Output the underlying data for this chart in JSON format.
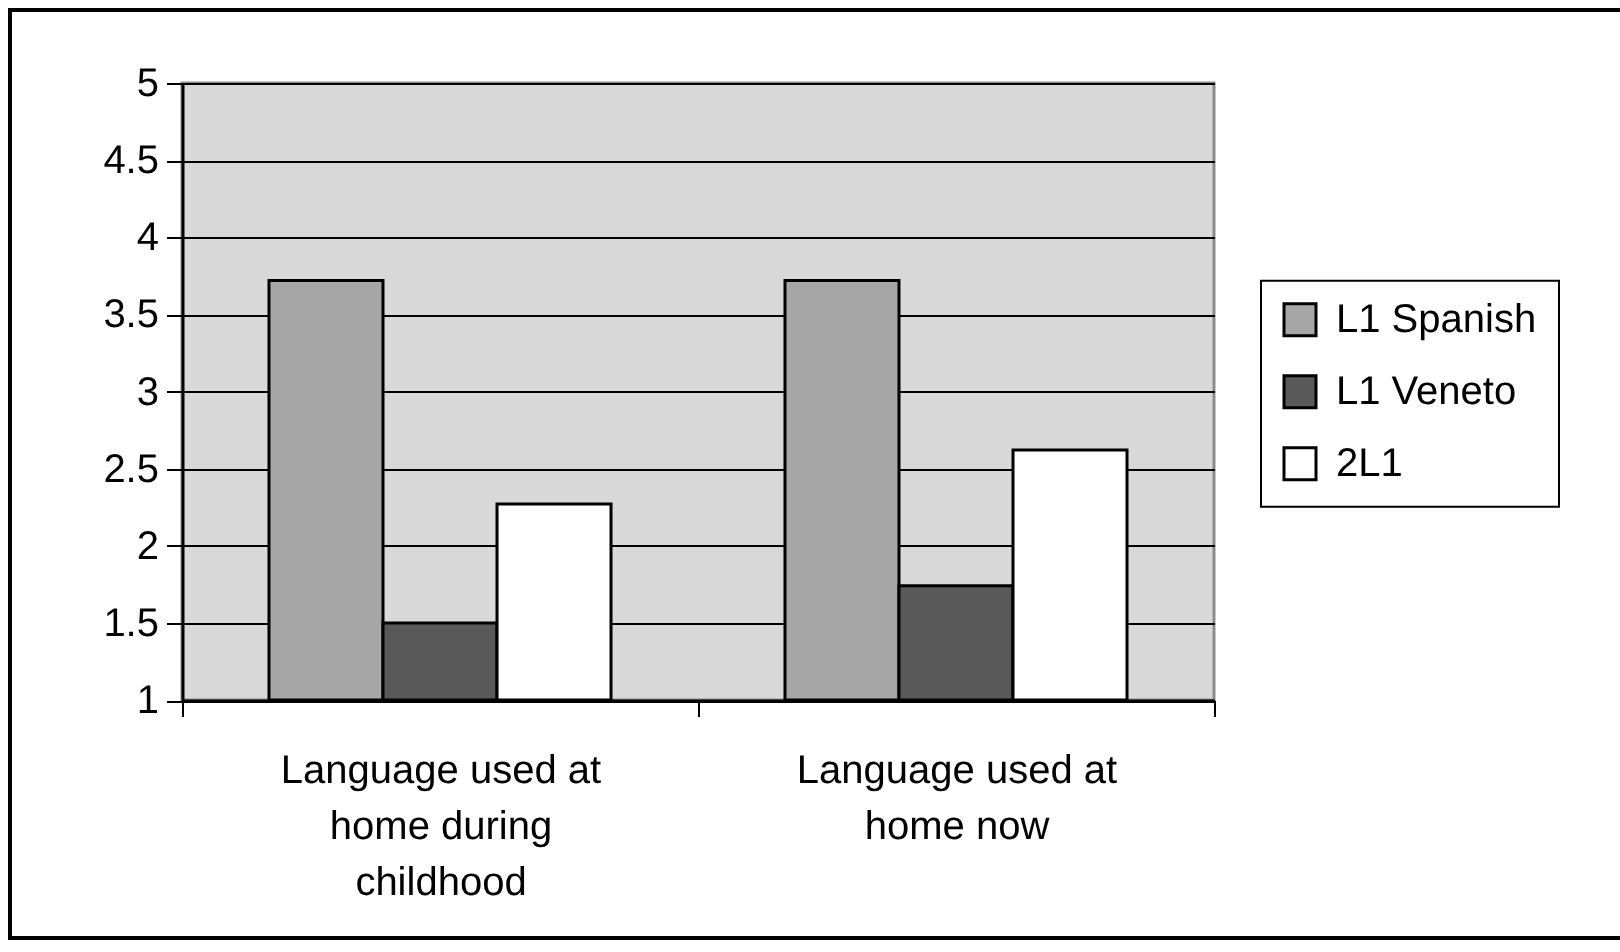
{
  "chart_data": {
    "type": "bar",
    "categories": [
      "Language used at home during childhood",
      "Language used at home now"
    ],
    "series": [
      {
        "name": "L1 Spanish",
        "color": "#a6a6a6",
        "values": [
          3.72,
          3.72
        ]
      },
      {
        "name": "L1 Veneto",
        "color": "#595959",
        "values": [
          1.5,
          1.74
        ]
      },
      {
        "name": "2L1",
        "color": "#ffffff",
        "values": [
          2.27,
          2.62
        ]
      }
    ],
    "ylim": [
      1,
      5
    ],
    "yticks": [
      1,
      1.5,
      2,
      2.5,
      3,
      3.5,
      4,
      4.5,
      5
    ],
    "grid": "y",
    "legend": "right"
  }
}
